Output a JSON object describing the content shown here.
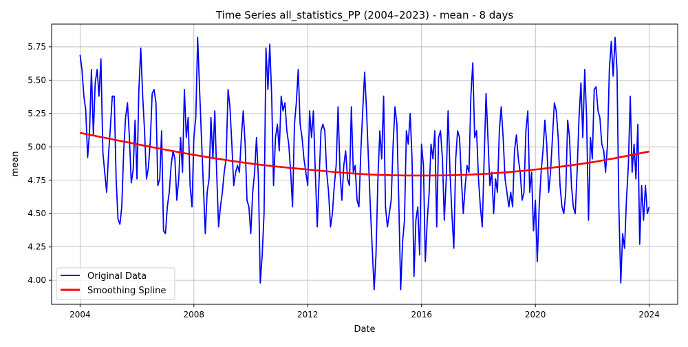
{
  "chart_data": {
    "type": "line",
    "title": "Time Series all_statistics_PP (2004–2023) - mean - 8 days",
    "xlabel": "Date",
    "ylabel": "mean",
    "xlim": [
      2003.0,
      2025.0
    ],
    "ylim": [
      3.82,
      5.92
    ],
    "grid": true,
    "legend_position": "lower-left",
    "x_ticks": [
      2004,
      2008,
      2012,
      2016,
      2020,
      2024
    ],
    "x_tick_labels": [
      "2004",
      "2008",
      "2012",
      "2016",
      "2020",
      "2024"
    ],
    "y_ticks": [
      4.0,
      4.25,
      4.5,
      4.75,
      5.0,
      5.25,
      5.5,
      5.75
    ],
    "y_tick_labels": [
      "4.00",
      "4.25",
      "4.50",
      "4.75",
      "5.00",
      "5.25",
      "5.50",
      "5.75"
    ],
    "series": [
      {
        "name": "Original Data",
        "color": "#0000ff",
        "x_start": 2004.0,
        "x_end": 2024.0,
        "values": [
          5.69,
          5.58,
          5.38,
          5.28,
          4.92,
          5.12,
          5.58,
          5.09,
          5.48,
          5.58,
          5.38,
          5.66,
          4.96,
          4.81,
          4.66,
          4.94,
          5.15,
          5.38,
          5.38,
          4.76,
          4.46,
          4.42,
          4.55,
          4.97,
          5.22,
          5.33,
          5.07,
          4.73,
          4.83,
          5.2,
          4.76,
          5.42,
          5.74,
          5.38,
          5.12,
          4.76,
          4.84,
          5.04,
          5.4,
          5.43,
          5.33,
          4.71,
          4.76,
          5.12,
          4.37,
          4.35,
          4.55,
          4.66,
          4.86,
          4.97,
          4.91,
          4.6,
          4.76,
          5.07,
          4.81,
          5.43,
          5.07,
          5.22,
          4.71,
          4.55,
          5.07,
          5.22,
          5.82,
          5.43,
          5.07,
          4.71,
          4.35,
          4.66,
          4.76,
          5.22,
          4.91,
          5.27,
          4.81,
          4.4,
          4.55,
          4.66,
          4.81,
          4.91,
          5.43,
          5.3,
          5.02,
          4.71,
          4.81,
          4.86,
          4.81,
          5.07,
          5.27,
          5.02,
          4.6,
          4.55,
          4.35,
          4.66,
          4.81,
          5.07,
          4.76,
          3.98,
          4.19,
          4.5,
          5.74,
          5.43,
          5.77,
          5.38,
          4.71,
          5.07,
          5.17,
          4.97,
          5.38,
          5.27,
          5.33,
          5.12,
          5.02,
          4.81,
          4.55,
          5.17,
          5.33,
          5.58,
          5.17,
          5.07,
          4.91,
          4.81,
          4.71,
          5.27,
          5.07,
          5.27,
          4.81,
          4.4,
          4.76,
          5.12,
          5.17,
          5.12,
          4.81,
          4.66,
          4.4,
          4.5,
          4.71,
          4.86,
          5.3,
          4.81,
          4.6,
          4.86,
          4.97,
          4.76,
          4.71,
          5.3,
          4.81,
          4.86,
          4.6,
          4.55,
          4.97,
          5.27,
          5.56,
          5.27,
          4.91,
          4.55,
          4.24,
          3.93,
          4.19,
          4.76,
          5.12,
          4.91,
          5.38,
          4.55,
          4.4,
          4.5,
          4.6,
          5.02,
          5.3,
          5.17,
          4.6,
          3.93,
          4.29,
          4.45,
          5.12,
          5.02,
          5.25,
          4.91,
          4.03,
          4.45,
          4.55,
          4.19,
          5.02,
          4.86,
          4.14,
          4.45,
          4.66,
          5.02,
          4.91,
          5.12,
          4.4,
          5.07,
          5.12,
          4.91,
          4.45,
          4.76,
          5.27,
          4.81,
          4.5,
          4.24,
          4.91,
          5.12,
          5.07,
          4.76,
          4.5,
          4.71,
          4.86,
          4.81,
          5.38,
          5.63,
          5.07,
          5.12,
          4.76,
          4.55,
          4.4,
          4.91,
          5.4,
          5.07,
          4.71,
          4.81,
          4.5,
          4.76,
          4.66,
          5.12,
          5.3,
          5.07,
          4.76,
          4.66,
          4.55,
          4.66,
          4.55,
          4.97,
          5.09,
          4.91,
          4.81,
          4.6,
          4.66,
          5.12,
          5.27,
          4.66,
          4.81,
          4.37,
          4.6,
          4.14,
          4.55,
          4.81,
          4.97,
          5.2,
          5.02,
          4.66,
          4.81,
          5.07,
          5.33,
          5.27,
          5.07,
          4.71,
          4.55,
          4.5,
          4.66,
          5.2,
          5.07,
          4.71,
          4.55,
          4.5,
          4.81,
          5.22,
          5.48,
          5.07,
          5.58,
          5.22,
          4.45,
          5.07,
          4.91,
          5.43,
          5.45,
          5.27,
          5.22,
          5.02,
          4.97,
          4.81,
          5.02,
          5.58,
          5.79,
          5.53,
          5.82,
          5.58,
          4.55,
          3.98,
          4.35,
          4.24,
          4.6,
          4.86,
          5.38,
          4.81,
          5.02,
          4.76,
          5.17,
          4.27,
          4.71,
          4.45,
          4.71,
          4.5,
          4.55
        ]
      },
      {
        "name": "Smoothing Spline",
        "color": "#ff0000",
        "x": [
          2004,
          2006,
          2008,
          2010,
          2012,
          2014,
          2016,
          2018,
          2020,
          2022,
          2024
        ],
        "values": [
          5.105,
          5.02,
          4.94,
          4.875,
          4.83,
          4.795,
          4.785,
          4.795,
          4.83,
          4.885,
          4.965
        ]
      }
    ]
  }
}
